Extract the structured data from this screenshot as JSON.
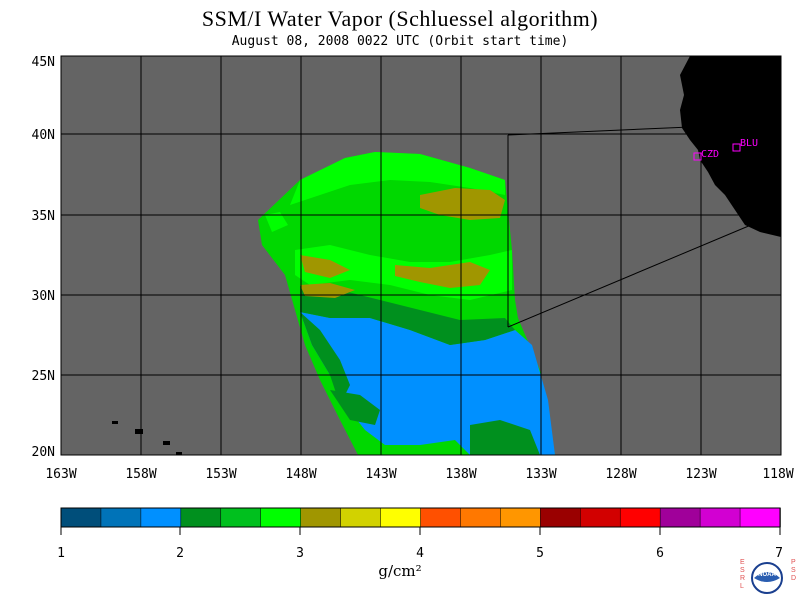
{
  "header": {
    "title": "SSM/I Water Vapor (Schluessel algorithm)",
    "subtitle": "August 08, 2008  0022 UTC  (Orbit start time)"
  },
  "map": {
    "lat_labels": [
      "45N",
      "40N",
      "35N",
      "30N",
      "25N",
      "20N"
    ],
    "lon_labels": [
      "163W",
      "158W",
      "153W",
      "148W",
      "143W",
      "138W",
      "133W",
      "128W",
      "123W",
      "118W"
    ],
    "sites": [
      {
        "label": "CZD"
      },
      {
        "label": "BLU"
      }
    ],
    "colors": {
      "ocean_background": "#646464",
      "land": "#000000",
      "grid": "#000000",
      "site_marker": "#ff00ff"
    }
  },
  "colorbar": {
    "unit": "g/cm²",
    "tick_labels": [
      "1",
      "2",
      "3",
      "4",
      "5",
      "6",
      "7"
    ],
    "colors": [
      "#004e7a",
      "#0073b8",
      "#0090ff",
      "#00901e",
      "#00c01e",
      "#00ff00",
      "#a09600",
      "#d2d200",
      "#ffff00",
      "#ff5000",
      "#ff7800",
      "#ff9600",
      "#9a0000",
      "#d20000",
      "#ff0000",
      "#a0009a",
      "#d200d2",
      "#ff00ff"
    ]
  },
  "logo": {
    "left_text": "ESRL",
    "right_text": "PSD",
    "center_text": "NOAA"
  }
}
